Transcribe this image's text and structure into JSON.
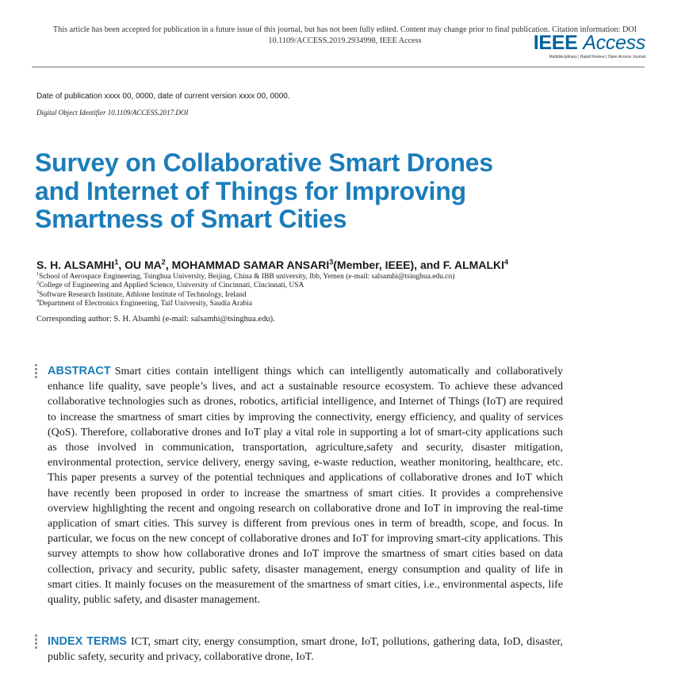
{
  "header": {
    "notice": "This article has been accepted for publication in a future issue of this journal, but has not been fully edited. Content may change prior to final publication. Citation information: DOI 10.1109/ACCESS.2019.2934998, IEEE Access",
    "logo": {
      "ieee": "IEEE",
      "access": "Access",
      "tagline": "Multidisciplinary | Rapid Review | Open Access Journal"
    }
  },
  "pub_info": {
    "date_line": "Date of publication xxxx 00, 0000, date of current version xxxx 00, 0000.",
    "doi_line": "Digital Object Identifier 10.1109/ACCESS.2017.DOI"
  },
  "title_lines": [
    "Survey on Collaborative Smart Drones",
    "and Internet of Things for Improving",
    "Smartness of Smart Cities"
  ],
  "authors": {
    "a1": "S. H. ALSAMHI",
    "a1_sup": "1",
    "sep1": ", ",
    "a2": "OU MA",
    "a2_sup": "2",
    "sep2": ", ",
    "a3": "MOHAMMAD SAMAR ANSARI",
    "a3_sup": "3",
    "a3_suffix": "(Member, IEEE), and ",
    "a4": "F. ALMALKI",
    "a4_sup": "4"
  },
  "affiliations": [
    {
      "sup": "1",
      "text": "School of Aerospace Engineering, Tsinghua University, Beijing, China & IBB university, Ibb, Yemen (e-mail: salsamhi@tsinghua.edu.cn)"
    },
    {
      "sup": "2",
      "text": "College of Engineering and Applied Science, University of Cincinnati, Cincinnati, USA"
    },
    {
      "sup": "3",
      "text": "Software Research Institute, Athlone Institute of Technology, Ireland"
    },
    {
      "sup": "4",
      "text": "Department of Electronics Engineering, Taif University, Saudia Arabia"
    }
  ],
  "corresponding": "Corresponding author: S. H. Alsamhi (e-mail: salsamhi@tsinghua.edu).",
  "abstract": {
    "label": "ABSTRACT",
    "text": "Smart cities contain intelligent things which can intelligently automatically and collaboratively enhance life quality, save people’s lives, and act a sustainable resource ecosystem. To achieve these advanced collaborative technologies such as drones, robotics, artificial intelligence, and Internet of Things (IoT) are required to increase the smartness of smart cities by improving the connectivity, energy efficiency, and quality of services (QoS). Therefore, collaborative drones and IoT play a vital role in supporting a lot of smart-city applications such as those involved in communication, transportation, agriculture,safety and security, disaster mitigation, environmental protection, service delivery, energy saving, e-waste reduction, weather monitoring, healthcare, etc. This paper presents a survey of the potential techniques and applications of collaborative drones and IoT which have recently been proposed in order to increase the smartness of smart cities. It provides a comprehensive overview highlighting the recent and ongoing research on collaborative drone and IoT in improving the real-time application of smart cities. This survey is different from previous ones in term of breadth, scope, and focus. In particular, we focus on the new concept of collaborative drones and IoT for improving smart-city applications. This survey attempts to show how collaborative drones and IoT improve the smartness of smart cities based on data collection, privacy and security, public safety, disaster management, energy consumption and quality of life in smart cities. It mainly focuses on the measurement of the smartness of smart cities, i.e., environmental aspects, life quality, public safety, and disaster management."
  },
  "index_terms": {
    "label": "INDEX TERMS",
    "text": "ICT, smart city, energy consumption, smart drone, IoT, pollutions, gathering data, IoD, disaster, public safety, security and privacy, collaborative drone, IoT."
  },
  "colors": {
    "accent_blue": "#1b7dba",
    "logo_blue": "#00629b"
  }
}
